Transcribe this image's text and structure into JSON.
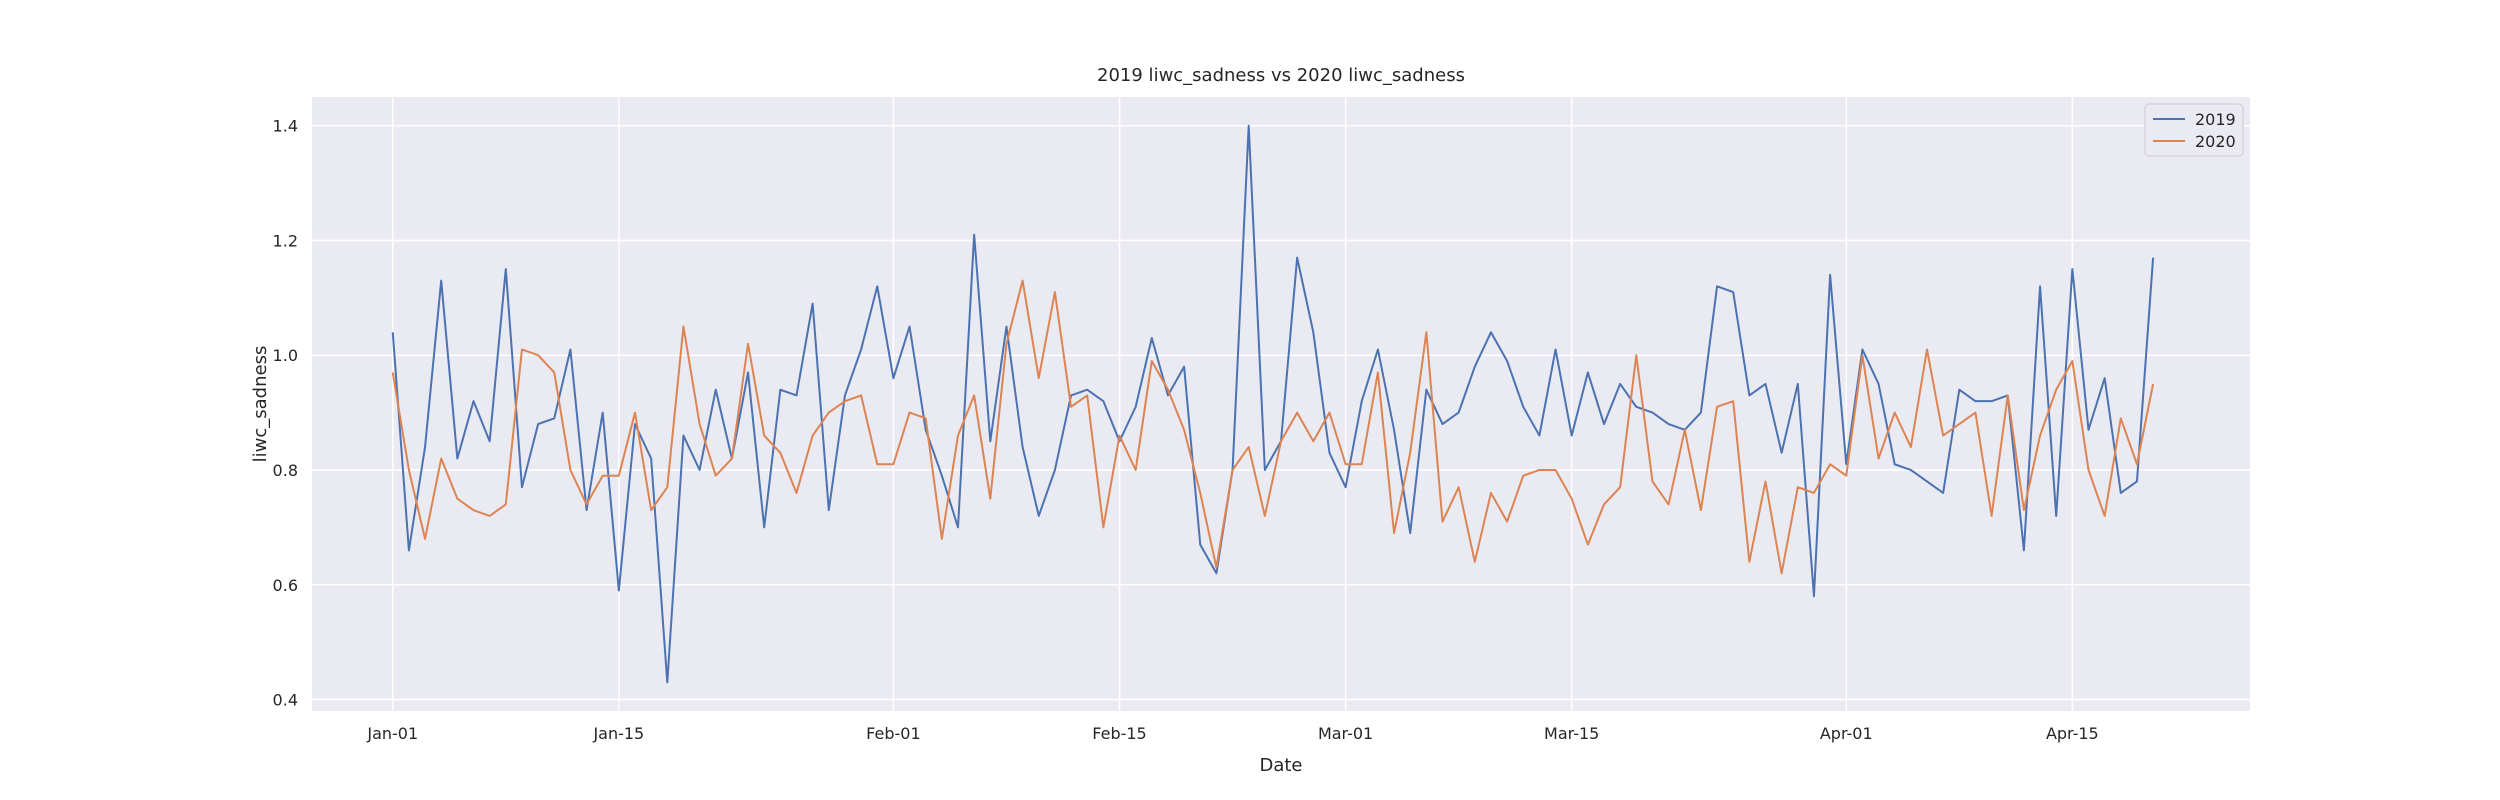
{
  "chart_data": {
    "type": "line",
    "title": "2019 liwc_sadness vs 2020 liwc_sadness",
    "xlabel": "Date",
    "ylabel": "liwc_sadness",
    "x_start": "Jan-01",
    "x_tick_labels": [
      "Jan-01",
      "Jan-15",
      "Feb-01",
      "Feb-15",
      "Mar-01",
      "Mar-15",
      "Apr-01",
      "Apr-15"
    ],
    "x_tick_days": [
      0,
      14,
      31,
      45,
      59,
      73,
      90,
      104
    ],
    "y_ticks": [
      0.4,
      0.6,
      0.8,
      1.0,
      1.2,
      1.4
    ],
    "y_tick_labels": [
      "0.4",
      "0.6",
      "0.8",
      "1.0",
      "1.2",
      "1.4"
    ],
    "xlim": [
      -5,
      115
    ],
    "ylim": [
      0.38,
      1.45
    ],
    "grid": true,
    "legend_position": "top-right",
    "series": [
      {
        "name": "2019",
        "color": "#4c72b0",
        "values": [
          1.04,
          0.66,
          0.84,
          1.13,
          0.82,
          0.92,
          0.85,
          1.15,
          0.77,
          0.88,
          0.89,
          1.01,
          0.73,
          0.9,
          0.59,
          0.88,
          0.82,
          0.43,
          0.86,
          0.8,
          0.94,
          0.82,
          0.97,
          0.7,
          0.94,
          0.93,
          1.09,
          0.73,
          0.93,
          1.01,
          1.12,
          0.96,
          1.05,
          0.87,
          0.79,
          0.7,
          1.21,
          0.85,
          1.05,
          0.84,
          0.72,
          0.8,
          0.93,
          0.94,
          0.92,
          0.85,
          0.91,
          1.03,
          0.93,
          0.98,
          0.67,
          0.62,
          0.8,
          1.4,
          0.8,
          0.85,
          1.17,
          1.04,
          0.83,
          0.77,
          0.92,
          1.01,
          0.87,
          0.69,
          0.94,
          0.88,
          0.9,
          0.98,
          1.04,
          0.99,
          0.91,
          0.86,
          1.01,
          0.86,
          0.97,
          0.88,
          0.95,
          0.91,
          0.9,
          0.88,
          0.87,
          0.9,
          1.12,
          1.11,
          0.93,
          0.95,
          0.83,
          0.95,
          0.58,
          1.14,
          0.81,
          1.01,
          0.95,
          0.81,
          0.8,
          0.78,
          0.76,
          0.94,
          0.92,
          0.92,
          0.93,
          0.66,
          1.12,
          0.72,
          1.15,
          0.87,
          0.96,
          0.76,
          0.78,
          1.17
        ]
      },
      {
        "name": "2020",
        "color": "#dd8452",
        "values": [
          0.97,
          0.8,
          0.68,
          0.82,
          0.75,
          0.73,
          0.72,
          0.74,
          1.01,
          1.0,
          0.97,
          0.8,
          0.74,
          0.79,
          0.79,
          0.9,
          0.73,
          0.77,
          1.05,
          0.88,
          0.79,
          0.82,
          1.02,
          0.86,
          0.83,
          0.76,
          0.86,
          0.9,
          0.92,
          0.93,
          0.81,
          0.81,
          0.9,
          0.89,
          0.68,
          0.86,
          0.93,
          0.75,
          1.02,
          1.13,
          0.96,
          1.11,
          0.91,
          0.93,
          0.7,
          0.86,
          0.8,
          0.99,
          0.94,
          0.87,
          0.76,
          0.63,
          0.8,
          0.84,
          0.72,
          0.85,
          0.9,
          0.85,
          0.9,
          0.81,
          0.81,
          0.97,
          0.69,
          0.83,
          1.04,
          0.71,
          0.77,
          0.64,
          0.76,
          0.71,
          0.79,
          0.8,
          0.8,
          0.75,
          0.67,
          0.74,
          0.77,
          1.0,
          0.78,
          0.74,
          0.87,
          0.73,
          0.91,
          0.92,
          0.64,
          0.78,
          0.62,
          0.77,
          0.76,
          0.81,
          0.79,
          1.0,
          0.82,
          0.9,
          0.84,
          1.01,
          0.86,
          0.88,
          0.9,
          0.72,
          0.93,
          0.73,
          0.86,
          0.94,
          0.99,
          0.8,
          0.72,
          0.89,
          0.81,
          0.95
        ]
      }
    ]
  }
}
